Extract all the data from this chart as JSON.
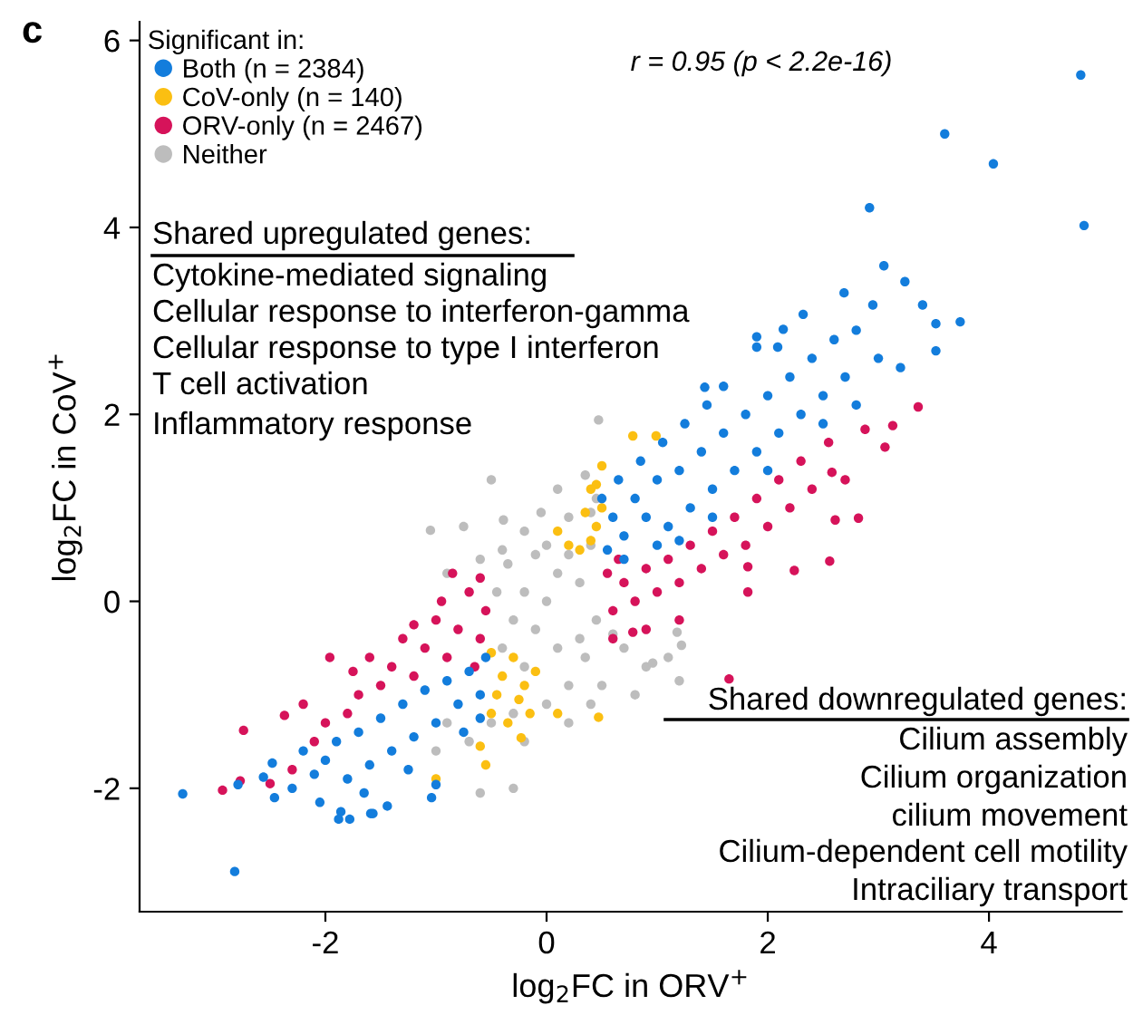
{
  "chart_data": {
    "type": "scatter",
    "xlabel": "log$_{2}$FC in ORV$^{+}$",
    "ylabel": "log$_{2}$FC in CoV$^{+}$",
    "legend_title": "Significant in:",
    "legend": "top left",
    "marker": "circle",
    "grid": false,
    "xlim": [
      -3.68,
      5.2
    ],
    "ylim": [
      -3.32,
      6.2
    ],
    "xticks": [
      -2,
      0,
      2,
      4
    ],
    "yticks": [
      -2,
      0,
      2,
      4,
      6
    ],
    "annotations": [
      "c",
      "r = 0.95 (p < 2.2e-16)",
      "Shared upregulated genes:",
      "Cytokine-mediated signaling",
      "Cellular response to interferon-gamma",
      "Cellular response to type I interferon",
      "T cell activation",
      "Inflammatory response",
      "Shared downregulated genes:",
      "Cilium assembly",
      "Cilium organization",
      "cilium movement",
      "Cilium-dependent cell motility",
      "Intraciliary transport"
    ],
    "series": [
      {
        "name": "Neither",
        "color": "#bdbdbd",
        "x": [
          -0.4,
          -0.3,
          -0.2,
          -0.1,
          0,
          0.1,
          0.2,
          0.3,
          0.4,
          0.45,
          -0.45,
          0.0,
          0.1,
          -0.2,
          0.3,
          -0.35,
          0.2,
          -0.1,
          0.4,
          0.45,
          0.35,
          0.1,
          -0.2,
          -0.4,
          -0.6,
          -0.75,
          -0.9,
          0.7,
          0.9,
          1.1,
          0.6,
          0.8,
          1.2,
          0.2,
          0.0,
          -0.2,
          -0.3,
          -0.5,
          -0.7,
          -0.3,
          -0.6,
          -1.0,
          -0.9,
          0.4,
          0.2,
          0.5,
          0.35,
          -0.05,
          1.18,
          1.22,
          0.96,
          0.47,
          -0.5,
          -0.39,
          -1.05
        ],
        "values": [
          -0.5,
          -0.2,
          0.1,
          -0.3,
          0,
          0.3,
          0.5,
          0.2,
          0.6,
          -0.2,
          0.1,
          0.6,
          -0.5,
          -0.7,
          -0.4,
          0.4,
          0.9,
          0.5,
          0.95,
          1.1,
          1.35,
          1.2,
          0.75,
          0.55,
          0.45,
          0.8,
          0.3,
          -0.5,
          -0.7,
          -0.6,
          -0.35,
          -1.0,
          -0.85,
          -0.9,
          -1.1,
          -1.5,
          -1.2,
          -1.3,
          -1.5,
          -2.0,
          -2.05,
          -1.6,
          -1.3,
          -1.1,
          -1.3,
          -0.9,
          -0.6,
          0.95,
          -0.33,
          -0.47,
          -0.66,
          1.94,
          1.3,
          0.87,
          0.76
        ]
      },
      {
        "name": "ORV-only (n = 2467)",
        "color": "#d6135a",
        "x": [
          0.6,
          0.7,
          0.8,
          0.9,
          1.0,
          1.1,
          1.2,
          1.3,
          1.4,
          1.5,
          1.6,
          1.7,
          1.8,
          1.9,
          2.0,
          2.1,
          2.2,
          2.3,
          2.4,
          2.55,
          2.7,
          2.56,
          2.24,
          1.82,
          1.82,
          1.65,
          2.61,
          2.82,
          2.58,
          3.36,
          3.13,
          3.06,
          2.88,
          0.9,
          0.6,
          1.2,
          0.78,
          0.55,
          0.65,
          -0.55,
          -0.6,
          -0.7,
          -0.8,
          -0.9,
          -1.0,
          -1.1,
          -1.2,
          -0.65,
          -0.95,
          -1.3,
          -1.4,
          -1.5,
          -1.6,
          -1.7,
          -1.8,
          -2.0,
          -2.1,
          -2.3,
          -2.5,
          -2.93,
          -2.77,
          -2.74,
          -2.37,
          -1.96,
          -1.2,
          -0.85,
          -0.6,
          -1.75,
          -2.2
        ],
        "values": [
          -0.1,
          0.2,
          0.0,
          0.35,
          0.1,
          0.45,
          0.2,
          0.6,
          0.35,
          0.75,
          0.5,
          0.9,
          0.6,
          1.1,
          0.8,
          1.3,
          1.0,
          1.5,
          1.2,
          1.7,
          1.3,
          0.43,
          0.33,
          0.37,
          0.1,
          -0.83,
          0.87,
          0.89,
          1.38,
          2.08,
          1.88,
          1.65,
          1.84,
          -0.3,
          -0.4,
          -0.2,
          -0.33,
          0.3,
          0.45,
          -0.1,
          -0.4,
          0.1,
          -0.3,
          -0.6,
          -0.2,
          -0.5,
          -0.8,
          -0.7,
          0.0,
          -0.4,
          -0.7,
          -0.9,
          -0.6,
          -1.0,
          -1.2,
          -1.3,
          -1.5,
          -1.8,
          -1.95,
          -2.02,
          -1.92,
          -1.38,
          -1.22,
          -0.6,
          -0.25,
          0.3,
          0.25,
          -0.75,
          -1.1
        ]
      },
      {
        "name": "CoV-only (n = 140)",
        "color": "#fbbf12",
        "x": [
          0.5,
          0.45,
          0.4,
          0.3,
          0.2,
          0.35,
          0.45,
          0.1,
          0.5,
          0.4,
          0.78,
          0.99,
          -0.5,
          -0.4,
          -0.3,
          -0.2,
          -0.45,
          -0.35,
          -0.1,
          -0.15,
          -0.5,
          -0.25,
          -0.6,
          -0.55,
          -1.0,
          0.1,
          0.47,
          -0.23
        ],
        "values": [
          1.0,
          0.8,
          0.65,
          0.55,
          0.6,
          0.95,
          1.25,
          0.75,
          1.45,
          1.2,
          1.77,
          1.77,
          -0.55,
          -0.8,
          -0.6,
          -0.9,
          -1.0,
          -1.3,
          -0.75,
          -1.2,
          -1.2,
          -1.05,
          -1.55,
          -1.75,
          -1.9,
          -1.2,
          -1.24,
          -1.46
        ]
      },
      {
        "name": "Both (n = 2384)",
        "color": "#137ddc",
        "x": [
          0.55,
          0.6,
          0.7,
          0.8,
          0.9,
          1.0,
          1.1,
          1.2,
          1.3,
          1.4,
          1.5,
          1.6,
          1.7,
          1.8,
          1.9,
          2.0,
          2.1,
          2.2,
          2.3,
          2.4,
          2.5,
          2.6,
          2.7,
          2.8,
          0.65,
          0.85,
          1.05,
          1.25,
          1.45,
          1.6,
          0.5,
          1.0,
          1.5,
          2.0,
          2.5,
          3.0,
          2.09,
          2.14,
          1.9,
          2.32,
          2.69,
          2.95,
          3.4,
          3.52,
          3.74,
          3.52,
          3.24,
          3.05,
          2.92,
          3.6,
          4.04,
          4.83,
          4.86,
          0.7,
          1.2,
          2.8,
          3.2,
          1.43,
          1.9,
          -0.55,
          -0.6,
          -0.7,
          -0.8,
          -0.9,
          -1.0,
          -1.1,
          -1.2,
          -1.3,
          -1.4,
          -1.5,
          -1.6,
          -1.7,
          -1.8,
          -1.9,
          -2.0,
          -2.1,
          -2.2,
          -2.3,
          -2.48,
          -2.46,
          -1.86,
          -1.78,
          -1.59,
          -1.44,
          -1.0,
          -1.04,
          -2.79,
          -2.56,
          -3.29,
          -2.82,
          -0.75,
          -1.25,
          -2.05,
          -1.65,
          -0.6,
          -1.88,
          -1.57
        ],
        "values": [
          0.55,
          0.9,
          0.7,
          1.1,
          0.9,
          1.3,
          0.8,
          1.4,
          1.0,
          1.6,
          1.2,
          1.8,
          1.4,
          2.0,
          1.6,
          2.2,
          1.8,
          2.4,
          2.0,
          2.6,
          2.2,
          2.8,
          2.4,
          2.9,
          1.3,
          1.5,
          1.7,
          1.9,
          2.1,
          2.3,
          1.1,
          0.6,
          0.9,
          1.4,
          1.9,
          2.6,
          2.72,
          2.91,
          2.83,
          3.07,
          3.3,
          3.17,
          3.17,
          2.97,
          2.99,
          2.68,
          3.42,
          3.59,
          4.21,
          5.0,
          4.68,
          5.63,
          4.02,
          0.45,
          0.65,
          2.1,
          2.5,
          2.29,
          2.72,
          -0.6,
          -1.0,
          -0.75,
          -1.1,
          -0.85,
          -1.3,
          -0.95,
          -1.45,
          -1.1,
          -1.6,
          -1.25,
          -1.75,
          -1.4,
          -1.9,
          -1.5,
          -1.7,
          -1.85,
          -1.6,
          -2.0,
          -1.73,
          -2.1,
          -2.25,
          -2.33,
          -2.27,
          -2.19,
          -1.96,
          -2.1,
          -1.96,
          -1.88,
          -2.06,
          -2.89,
          -1.4,
          -1.8,
          -2.15,
          -2.05,
          -1.25,
          -2.33,
          -2.27
        ]
      }
    ]
  }
}
